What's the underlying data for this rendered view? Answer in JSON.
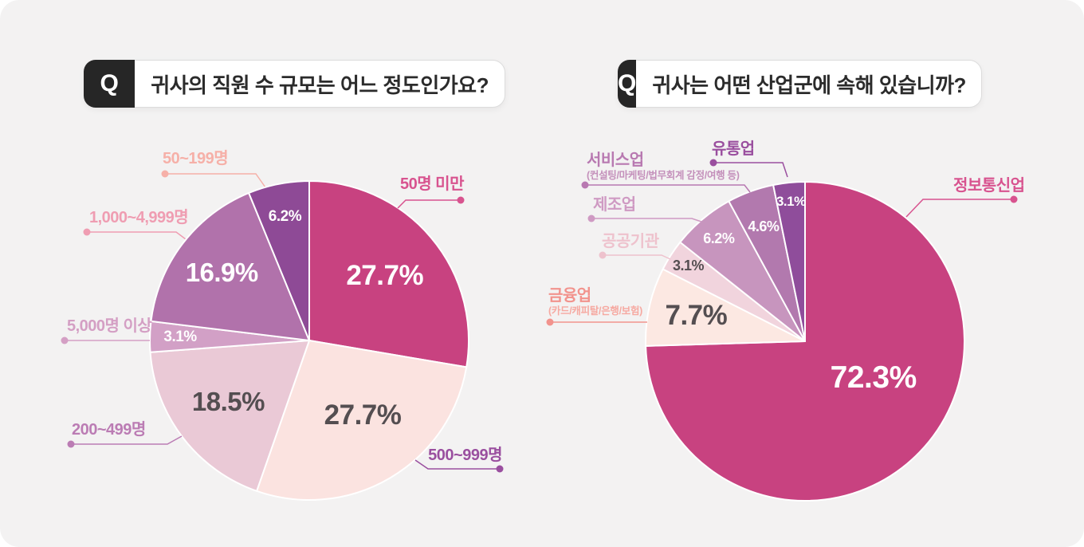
{
  "page": {
    "background_color": "#f3f2f2",
    "accent_color": "#c84280"
  },
  "questions": [
    {
      "badge": "Q",
      "title": "귀사의 직원 수 규모는 어느 정도인가요?"
    },
    {
      "badge": "Q",
      "title": "귀사는 어떤 산업군에 속해 있습니까?"
    }
  ],
  "chart_data": [
    {
      "type": "pie",
      "title": "귀사의 직원 수 규모는 어느 정도인가요?",
      "legend_position": "outside-callouts",
      "start_angle_deg": 0,
      "direction": "clockwise",
      "slices": [
        {
          "label": "50명 미만",
          "value": 27.7,
          "display": "27.7%",
          "color": "#c84280",
          "pct_color": "#ffffff",
          "label_color": "#d8538f"
        },
        {
          "label": "50~199명",
          "value": 27.7,
          "display": "27.7%",
          "color": "#fbe3e0",
          "pct_color": "#544e51",
          "label_color": "#f6b0a8"
        },
        {
          "label": "1,000~4,999명",
          "value": 18.5,
          "display": "18.5%",
          "color": "#eac9d6",
          "pct_color": "#544e51",
          "label_color": "#ef9db2"
        },
        {
          "label": "5,000명 이상",
          "value": 3.1,
          "display": "3.1%",
          "color": "#d2a0c6",
          "pct_color": "#ffffff",
          "label_color": "#d49fc4"
        },
        {
          "label": "200~499명",
          "value": 16.9,
          "display": "16.9%",
          "color": "#b172ab",
          "pct_color": "#ffffff",
          "label_color": "#bb7cb4"
        },
        {
          "label": "500~999명",
          "value": 6.2,
          "display": "6.2%",
          "color": "#8e4a96",
          "pct_color": "#ffffff",
          "label_color": "#9a4f9f"
        }
      ]
    },
    {
      "type": "pie",
      "title": "귀사는 어떤 산업군에 속해 있습니까?",
      "legend_position": "outside-callouts",
      "start_angle_deg": 0,
      "direction": "clockwise",
      "slices": [
        {
          "label": "정보통신업",
          "value": 72.3,
          "display": "72.3%",
          "color": "#c84280",
          "pct_color": "#ffffff",
          "label_color": "#d8538f"
        },
        {
          "label": "금융업",
          "sublabel": "(카드/캐피탈/은행/보험)",
          "value": 7.7,
          "display": "7.7%",
          "color": "#fce8e2",
          "pct_color": "#544e51",
          "label_color": "#f2938d",
          "sublabel_color": "#f6a9a1"
        },
        {
          "label": "공공기관",
          "value": 3.1,
          "display": "3.1%",
          "color": "#f1d4dd",
          "pct_color": "#544e51",
          "label_color": "#eec2cd"
        },
        {
          "label": "제조업",
          "value": 6.2,
          "display": "6.2%",
          "color": "#c795be",
          "pct_color": "#ffffff",
          "label_color": "#cf9ac3"
        },
        {
          "label": "서비스업",
          "sublabel": "(컨설팅/마케팅/법무회계 감정/여행 등)",
          "value": 4.6,
          "display": "4.6%",
          "color": "#b279ae",
          "pct_color": "#ffffff",
          "label_color": "#b879b1",
          "sublabel_color": "#c490bb"
        },
        {
          "label": "유통업",
          "value": 3.1,
          "display": "3.1%",
          "color": "#8f4d9b",
          "pct_color": "#ffffff",
          "label_color": "#9a4f9f"
        }
      ]
    }
  ]
}
